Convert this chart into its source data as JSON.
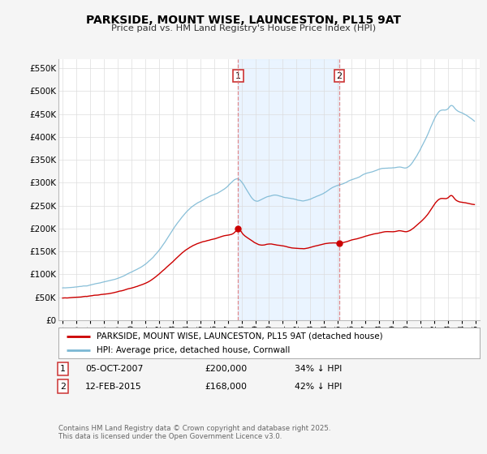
{
  "title": "PARKSIDE, MOUNT WISE, LAUNCESTON, PL15 9AT",
  "subtitle": "Price paid vs. HM Land Registry's House Price Index (HPI)",
  "ylim": [
    0,
    570000
  ],
  "yticks": [
    0,
    50000,
    100000,
    150000,
    200000,
    250000,
    300000,
    350000,
    400000,
    450000,
    500000,
    550000
  ],
  "ytick_labels": [
    "£0",
    "£50K",
    "£100K",
    "£150K",
    "£200K",
    "£250K",
    "£300K",
    "£350K",
    "£400K",
    "£450K",
    "£500K",
    "£550K"
  ],
  "hpi_color": "#7bb8d4",
  "price_color": "#cc0000",
  "vline_color": "#e07070",
  "shade_color": "#ddeeff",
  "marker1_x": 2007.75,
  "marker2_x": 2015.1,
  "sale1_price": 200000,
  "sale2_price": 168000,
  "legend_label_price": "PARKSIDE, MOUNT WISE, LAUNCESTON, PL15 9AT (detached house)",
  "legend_label_hpi": "HPI: Average price, detached house, Cornwall",
  "footer": "Contains HM Land Registry data © Crown copyright and database right 2025.\nThis data is licensed under the Open Government Licence v3.0.",
  "bg_color": "#f5f5f5",
  "plot_bg_color": "#ffffff",
  "grid_color": "#dddddd"
}
